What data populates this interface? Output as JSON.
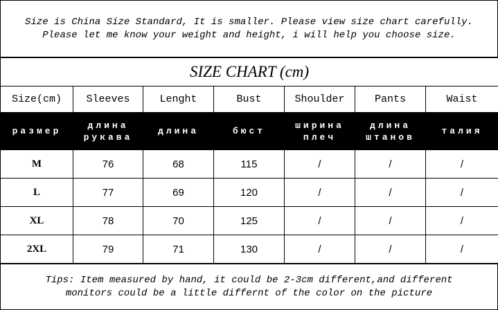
{
  "notice": [
    "Size is China Size Standard, It is smaller. Please view size chart carefully.",
    "Please let me know your weight and height, i will help you choose size."
  ],
  "table": {
    "title": "SIZE CHART (cm)",
    "header": [
      "Size(cm)",
      "Sleeves",
      "Lenght",
      "Bust",
      "Shoulder",
      "Pants",
      "Waist"
    ],
    "header_ru": [
      [
        "размер"
      ],
      [
        "длина",
        "рукава"
      ],
      [
        "длина"
      ],
      [
        "бюст"
      ],
      [
        "ширина",
        "плеч"
      ],
      [
        "длина",
        "штанов"
      ],
      [
        "талия"
      ]
    ],
    "rows": [
      [
        "M",
        76,
        68,
        115,
        "/",
        "/",
        "/"
      ],
      [
        "L",
        77,
        69,
        120,
        "/",
        "/",
        "/"
      ],
      [
        "XL",
        78,
        70,
        125,
        "/",
        "/",
        "/"
      ],
      [
        "2XL",
        79,
        71,
        130,
        "/",
        "/",
        "/"
      ]
    ]
  },
  "tips": [
    "Tips: Item measured by hand, it could be 2-3cm different,and different",
    "monitors could be a little differnt of the color on the picture"
  ]
}
